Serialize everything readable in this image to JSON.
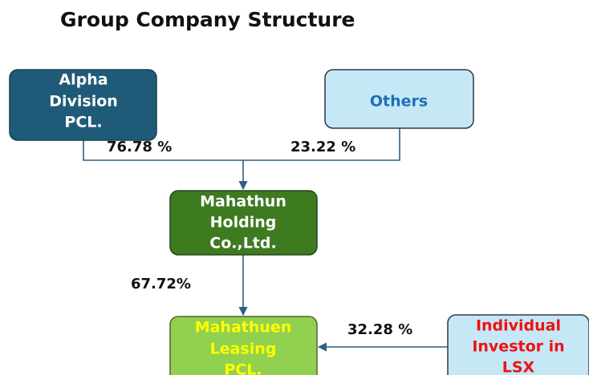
{
  "header": {
    "title": "Group Company Structure"
  },
  "nodes": [
    {
      "lines": [
        "Alpha",
        "Division",
        "PCL."
      ]
    },
    {
      "lines": [
        "Others"
      ]
    },
    {
      "lines": [
        "Mahathun",
        "Holding",
        "Co.,Ltd."
      ]
    },
    {
      "lines": [
        "Mahathuen",
        "Leasing",
        "PCL."
      ]
    },
    {
      "lines": [
        "Individual",
        "Investor in",
        "LSX"
      ]
    }
  ],
  "edges": [
    {
      "label": "76.78 %"
    },
    {
      "label": "23.22 %"
    },
    {
      "label": "67.72%"
    },
    {
      "label": "32.28 %"
    }
  ]
}
